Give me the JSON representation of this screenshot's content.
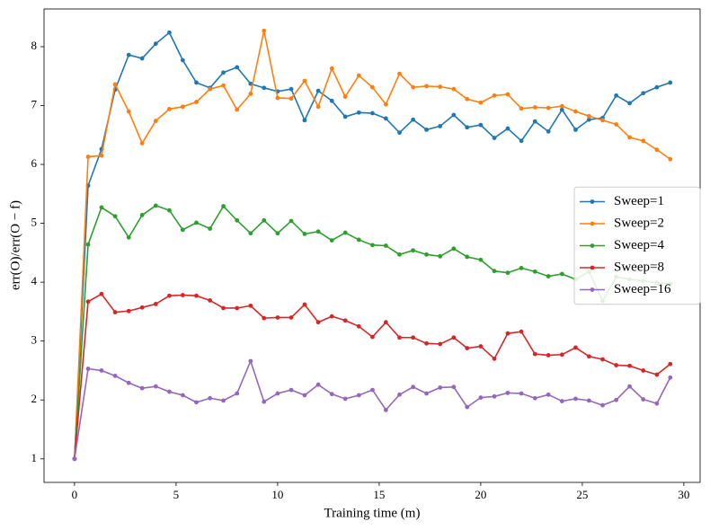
{
  "chart_data": {
    "type": "line",
    "xlabel": "Training time (m)",
    "ylabel": "err(O)/err(O − f)",
    "x": [
      0,
      0.67,
      1.33,
      2,
      2.67,
      3.33,
      4,
      4.67,
      5.33,
      6,
      6.67,
      7.33,
      8,
      8.67,
      9.33,
      10,
      10.67,
      11.33,
      12,
      12.67,
      13.33,
      14,
      14.67,
      15.33,
      16,
      16.67,
      17.33,
      18,
      18.67,
      19.33,
      20,
      20.67,
      21.33,
      22,
      22.67,
      23.33,
      24,
      24.67,
      25.33,
      26,
      26.67,
      27.33,
      28,
      28.67,
      29.33
    ],
    "series": [
      {
        "name": "Sweep=1",
        "color": "#1f77b4",
        "values": [
          1,
          5.64,
          6.26,
          7.27,
          7.86,
          7.8,
          8.05,
          8.24,
          7.77,
          7.39,
          7.3,
          7.56,
          7.65,
          7.37,
          7.3,
          7.24,
          7.28,
          6.75,
          7.25,
          7.08,
          6.81,
          6.88,
          6.87,
          6.78,
          6.54,
          6.76,
          6.59,
          6.65,
          6.84,
          6.63,
          6.67,
          6.45,
          6.61,
          6.4,
          6.73,
          6.56,
          6.93,
          6.59,
          6.76,
          6.79,
          7.17,
          7.04,
          7.21,
          7.31,
          7.39
        ]
      },
      {
        "name": "Sweep=2",
        "color": "#ff7f0e",
        "values": [
          1,
          6.13,
          6.15,
          7.36,
          6.9,
          6.36,
          6.74,
          6.94,
          6.98,
          7.06,
          7.28,
          7.34,
          6.93,
          7.2,
          8.27,
          7.13,
          7.12,
          7.42,
          6.98,
          7.63,
          7.15,
          7.51,
          7.31,
          7.02,
          7.54,
          7.31,
          7.33,
          7.32,
          7.28,
          7.11,
          7.05,
          7.17,
          7.19,
          6.95,
          6.97,
          6.96,
          6.99,
          6.9,
          6.82,
          6.75,
          6.68,
          6.46,
          6.4,
          6.25,
          6.09
        ]
      },
      {
        "name": "Sweep=4",
        "color": "#2ca02c",
        "values": [
          1,
          4.64,
          5.27,
          5.12,
          4.76,
          5.14,
          5.3,
          5.22,
          4.89,
          5.01,
          4.91,
          5.29,
          5.05,
          4.83,
          5.05,
          4.83,
          5.04,
          4.82,
          4.86,
          4.71,
          4.84,
          4.72,
          4.63,
          4.62,
          4.47,
          4.54,
          4.47,
          4.44,
          4.57,
          4.43,
          4.38,
          4.19,
          4.16,
          4.24,
          4.18,
          4.1,
          4.14,
          4.05,
          4.18,
          3.68,
          4.09,
          4.05,
          4.02,
          3.99,
          3.97
        ]
      },
      {
        "name": "Sweep=8",
        "color": "#d62728",
        "values": [
          1,
          3.67,
          3.8,
          3.49,
          3.51,
          3.57,
          3.63,
          3.77,
          3.78,
          3.77,
          3.69,
          3.56,
          3.56,
          3.6,
          3.39,
          3.4,
          3.4,
          3.62,
          3.32,
          3.42,
          3.35,
          3.25,
          3.07,
          3.32,
          3.06,
          3.06,
          2.96,
          2.95,
          3.06,
          2.88,
          2.91,
          2.7,
          3.13,
          3.16,
          2.78,
          2.76,
          2.77,
          2.89,
          2.74,
          2.69,
          2.59,
          2.58,
          2.5,
          2.43,
          2.61
        ]
      },
      {
        "name": "Sweep=16",
        "color": "#9467bd",
        "values": [
          1,
          2.53,
          2.5,
          2.41,
          2.29,
          2.2,
          2.23,
          2.14,
          2.08,
          1.96,
          2.03,
          1.99,
          2.11,
          2.66,
          1.97,
          2.11,
          2.17,
          2.08,
          2.26,
          2.1,
          2.02,
          2.08,
          2.17,
          1.83,
          2.09,
          2.22,
          2.11,
          2.21,
          2.22,
          1.88,
          2.04,
          2.06,
          2.12,
          2.11,
          2.03,
          2.09,
          1.98,
          2.02,
          1.99,
          1.91,
          2.0,
          2.23,
          2.01,
          1.94,
          2.38
        ]
      }
    ],
    "xlim": [
      -1.5,
      30.8
    ],
    "xticks": [
      0,
      5,
      10,
      15,
      20,
      25,
      30
    ],
    "ylim": [
      0.6,
      8.64
    ],
    "yticks": [
      1,
      2,
      3,
      4,
      5,
      6,
      7,
      8
    ],
    "legend": "center right"
  }
}
